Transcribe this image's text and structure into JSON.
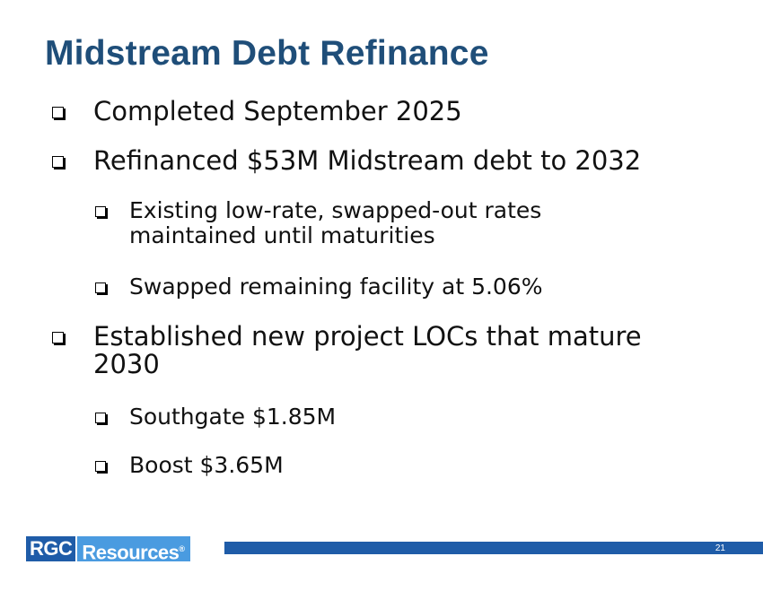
{
  "slide": {
    "title": "Midstream Debt Refinance",
    "bullets": [
      {
        "text": "Completed September 2025"
      },
      {
        "text": "Refinanced $53M Midstream debt to 2032"
      },
      {
        "text": "Existing low-rate, swapped-out rates maintained until maturities"
      },
      {
        "text": "Swapped remaining facility at 5.06%"
      },
      {
        "text": "Established new project LOCs that mature 2030"
      },
      {
        "text": "Southgate $1.85M"
      },
      {
        "text": "Boost $3.65M"
      }
    ]
  },
  "footer": {
    "logo_part1": "RGC",
    "logo_part2": "Resources",
    "logo_mark": "®",
    "page_number": "21"
  },
  "colors": {
    "title": "#1f4e79",
    "footer_bar": "#1f5ca8",
    "logo_dark": "#1f5ca8",
    "logo_light": "#4a9be0"
  }
}
